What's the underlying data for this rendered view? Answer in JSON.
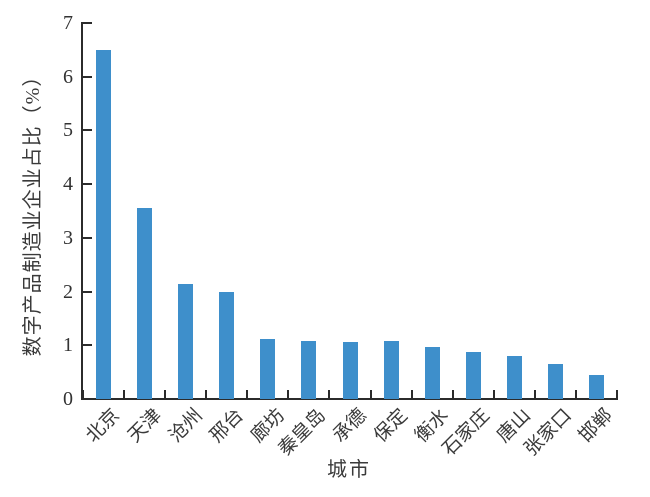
{
  "chart_data": {
    "type": "bar",
    "title": "",
    "xlabel": "城市",
    "ylabel": "数字产品制造业企业占比（%）",
    "categories": [
      "北京",
      "天津",
      "沧州",
      "邢台",
      "廊坊",
      "秦皇岛",
      "承德",
      "保定",
      "衡水",
      "石家庄",
      "唐山",
      "张家口",
      "邯郸"
    ],
    "values": [
      6.5,
      3.55,
      2.15,
      2.0,
      1.12,
      1.08,
      1.07,
      1.08,
      0.96,
      0.88,
      0.8,
      0.65,
      0.44
    ],
    "ylim": [
      0,
      7
    ],
    "yticks": [
      0,
      1,
      2,
      3,
      4,
      5,
      6,
      7
    ],
    "grid": false,
    "legend": null,
    "x_tick_style": "boundaries-between-categories, ticks point inward",
    "y_tick_style": "ticks point inward",
    "bar_color": "#3E8FCB",
    "axis_color": "#2B2B2B",
    "text_color": "#3A3A3A",
    "background_color": "#FFFFFF"
  }
}
